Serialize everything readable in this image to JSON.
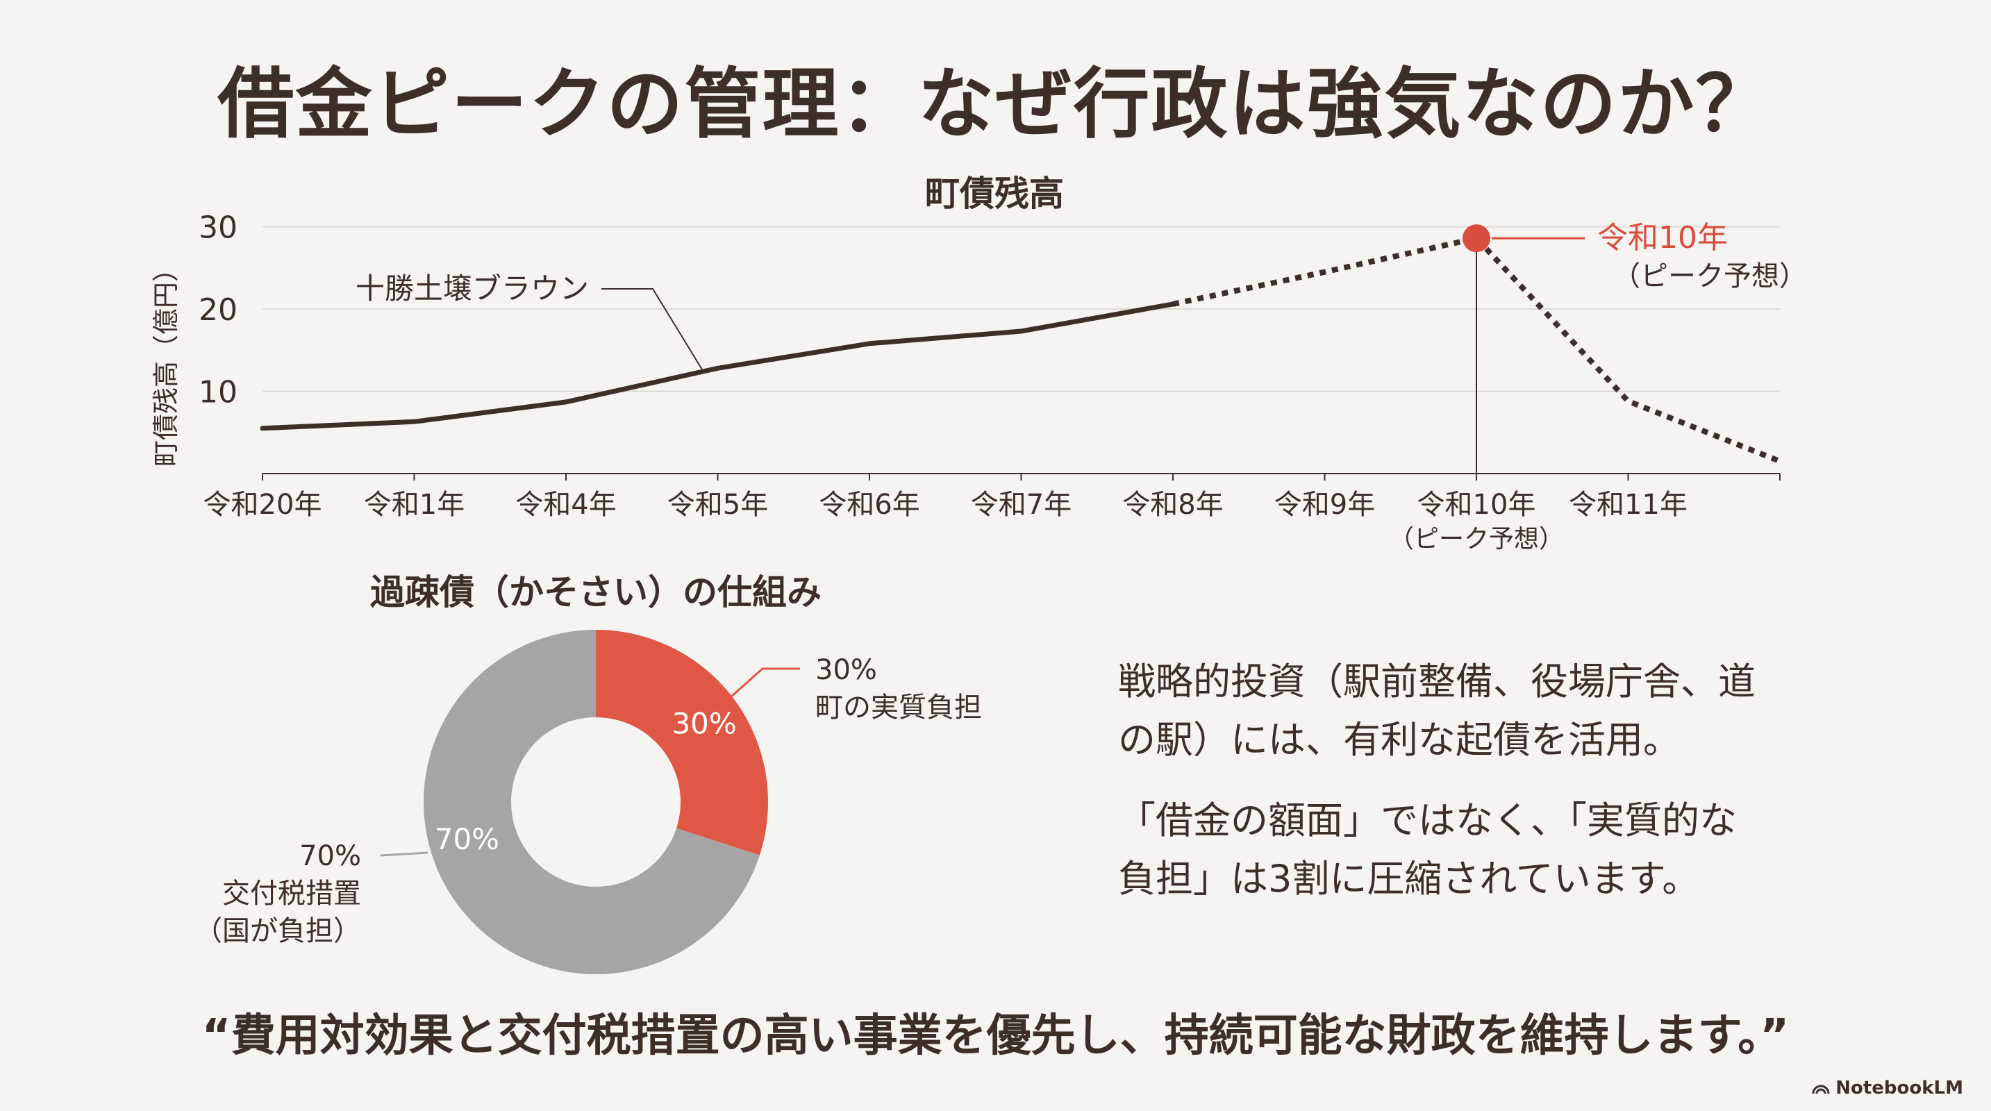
{
  "title": "借金ピークの管理：なぜ行政は強気なのか？",
  "chart_data": [
    {
      "type": "line",
      "title": "町債残高",
      "ylabel": "町債残高（億円）",
      "xlabel": "",
      "ylim": [
        0,
        30
      ],
      "yticks": [
        10,
        20,
        30
      ],
      "grid": true,
      "categories": [
        "令和20年",
        "令和1年",
        "令和4年",
        "令和5年",
        "令和6年",
        "令和7年",
        "令和8年",
        "令和9年",
        "令和10年",
        "令和11年",
        ""
      ],
      "category_sublabels": {
        "令和10年": "（ピーク予想）"
      },
      "series": [
        {
          "name": "十勝土壌ブラウン",
          "color": "#3d2e28",
          "values": [
            5.5,
            6.3,
            8.7,
            12.8,
            15.8,
            17.3,
            20.6,
            null,
            null,
            null,
            null
          ],
          "style": "solid"
        },
        {
          "name": "",
          "color": "#3d2e28",
          "values": [
            null,
            null,
            null,
            null,
            null,
            null,
            20.6,
            24.5,
            28.6,
            8.8,
            1.5
          ],
          "style": "dotted"
        }
      ],
      "peak": {
        "category": "令和10年",
        "value": 28.6,
        "label": "令和10年",
        "sublabel": "（ピーク予想）",
        "color": "#d94d3f"
      }
    },
    {
      "type": "pie",
      "title": "過疎債（かそさい）の仕組み",
      "slices": [
        {
          "label": "町の実質負担",
          "value": 30,
          "value_label": "30%",
          "color": "#e05746"
        },
        {
          "label": "交付税措置",
          "sublabel": "（国が負担）",
          "value": 70,
          "value_label": "70%",
          "color": "#a5a5a5"
        }
      ]
    }
  ],
  "paragraphs": [
    [
      "戦略的投資（駅前整備、役場庁舎、道",
      "の駅）には、有利な起債を活用。"
    ],
    [
      "「借金の額面」ではなく、「実質的な",
      "負担」は3割に圧縮されています。"
    ]
  ],
  "quote": "“費用対効果と交付税措置の高い事業を優先し、持続可能な財政を維持します。”",
  "brand": "NotebookLM",
  "colors": {
    "text": "#3d2e28",
    "accent": "#d94d3f",
    "gray": "#a5a5a5",
    "grid": "#dcdad5",
    "background": "#f5f4f0"
  }
}
